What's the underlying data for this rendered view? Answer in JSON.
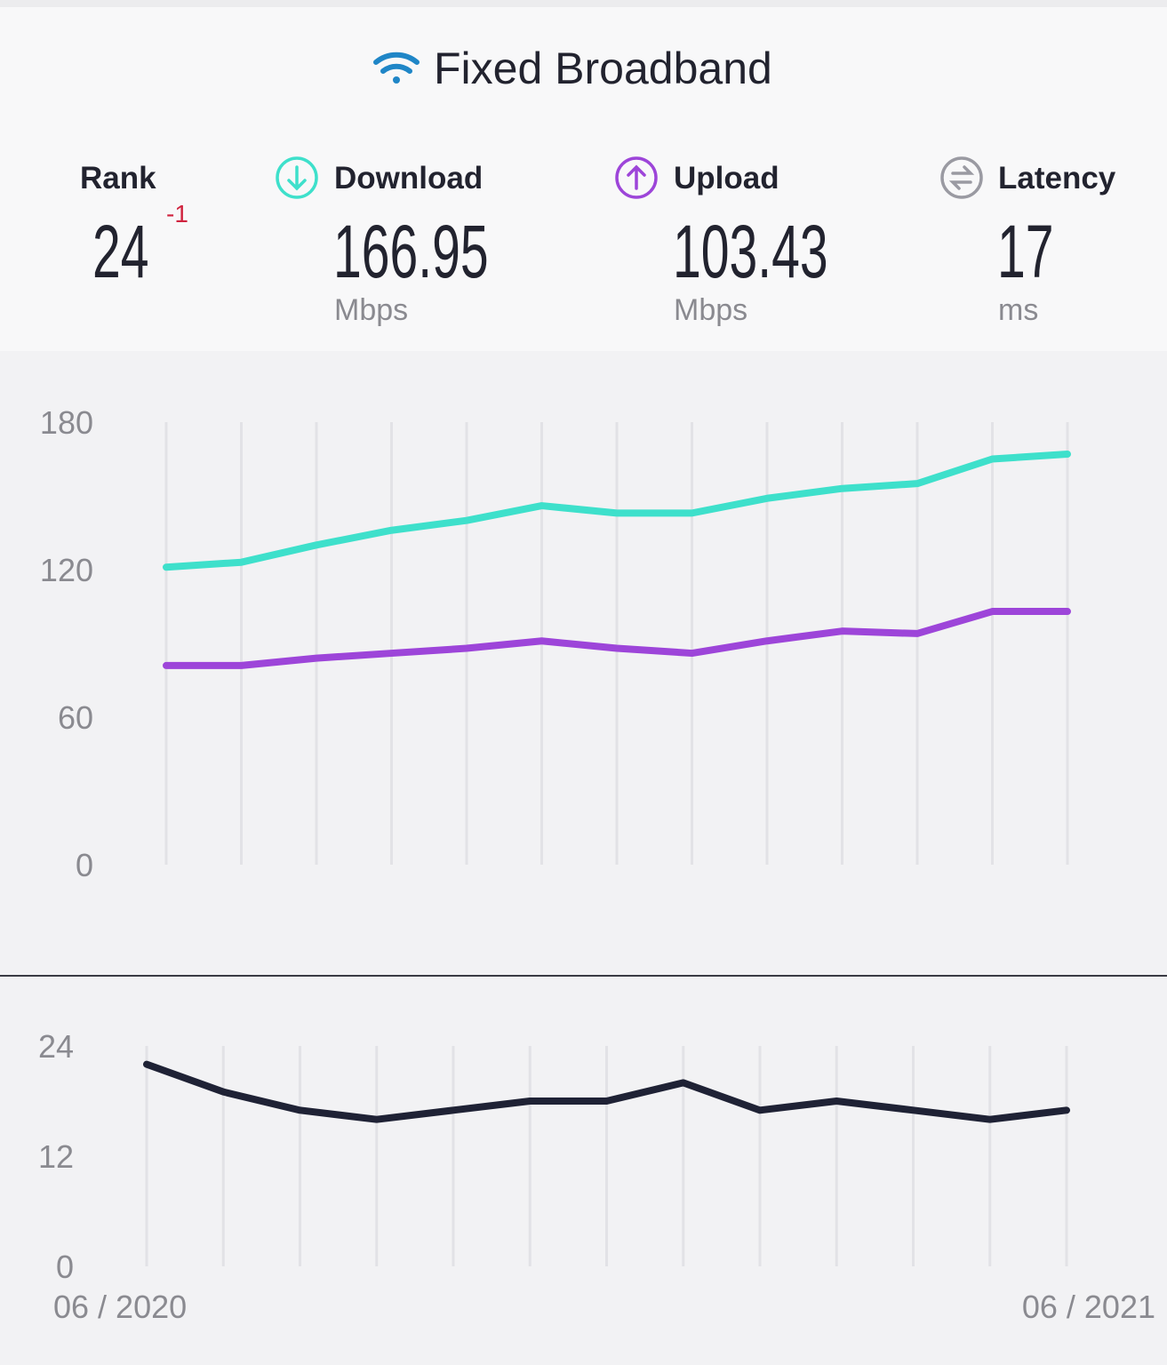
{
  "header": {
    "title": "Fixed Broadband"
  },
  "stats": [
    {
      "label": "Rank",
      "value": 24,
      "change": -1
    },
    {
      "label": "Download",
      "value": 166.95,
      "unit": "Mbps"
    },
    {
      "label": "Upload",
      "value": 103.43,
      "unit": "Mbps"
    },
    {
      "label": "Latency",
      "value": 17,
      "unit": "ms"
    }
  ],
  "chart_data": [
    {
      "type": "line",
      "categories": [
        null,
        null,
        null,
        null,
        null,
        null,
        null,
        null,
        null,
        null,
        null,
        null,
        null
      ],
      "series": [
        {
          "color": "#3ee0cb",
          "values": [
            121,
            123,
            130,
            136,
            140,
            146,
            143,
            143,
            149,
            153,
            155,
            165,
            167
          ]
        },
        {
          "color": "#9d45d9",
          "values": [
            81,
            81,
            84,
            86,
            88,
            91,
            88,
            86,
            91,
            95,
            94,
            103,
            103
          ]
        }
      ],
      "ylim": [
        0,
        180
      ],
      "yticks": [
        0,
        60,
        120,
        180
      ],
      "grid": true
    },
    {
      "type": "line",
      "categories": [
        "06 / 2020",
        null,
        null,
        null,
        null,
        null,
        null,
        null,
        null,
        null,
        null,
        null,
        "06 / 2021"
      ],
      "series": [
        {
          "color": "#1f2235",
          "values": [
            22,
            19,
            17,
            16,
            17,
            18,
            18,
            20,
            17,
            18,
            17,
            16,
            17
          ]
        }
      ],
      "ylim": [
        0,
        24
      ],
      "yticks": [
        0,
        12,
        24
      ],
      "grid": true
    }
  ]
}
